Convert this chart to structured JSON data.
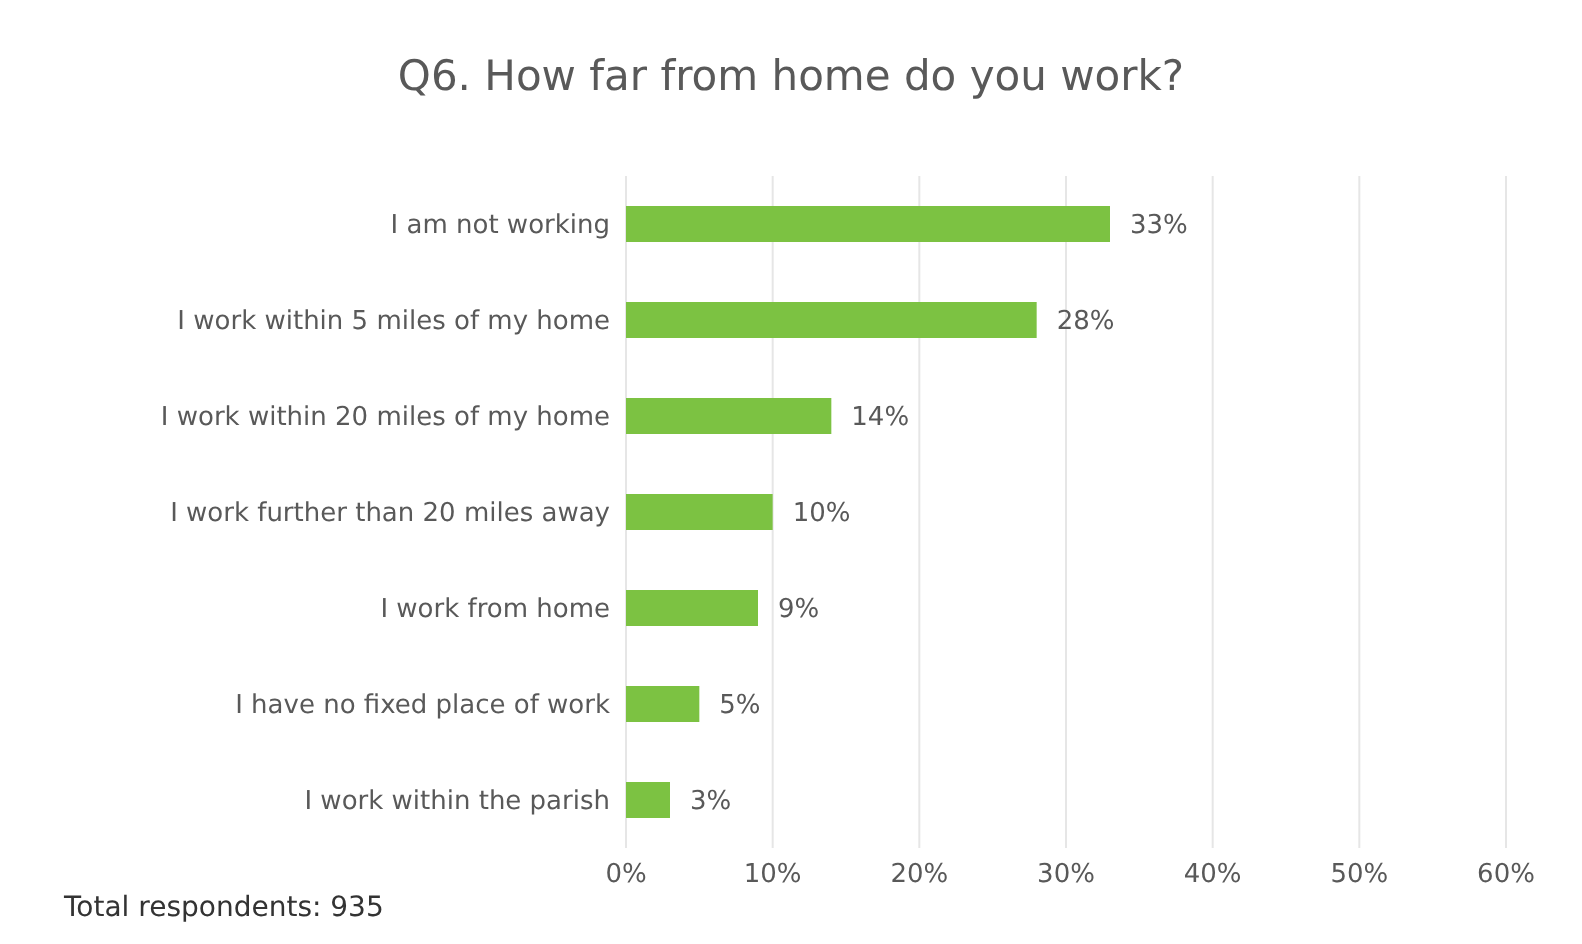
{
  "chart_data": {
    "type": "bar",
    "orientation": "horizontal",
    "title": "Q6. How far from home do you work?",
    "categories": [
      "I am not working",
      "I work within 5 miles of my home",
      "I work within 20 miles of my home",
      "I work further than 20 miles away",
      "I work from home",
      "I have no fixed place of work",
      "I work within the parish"
    ],
    "values": [
      33,
      28,
      14,
      10,
      9,
      5,
      3
    ],
    "value_labels": [
      "33%",
      "28%",
      "14%",
      "10%",
      "9%",
      "5%",
      "3%"
    ],
    "color": "#7cc242",
    "xlim": [
      0,
      60
    ],
    "xticks": [
      {
        "value": 0,
        "label": "0%"
      },
      {
        "value": 10,
        "label": "10%"
      },
      {
        "value": 20,
        "label": "20%"
      },
      {
        "value": 30,
        "label": "30%"
      },
      {
        "value": 40,
        "label": "40%"
      },
      {
        "value": 50,
        "label": "50%"
      },
      {
        "value": 60,
        "label": "60%"
      }
    ],
    "grid": "x",
    "annotations": [
      "Total respondents: 935"
    ]
  }
}
